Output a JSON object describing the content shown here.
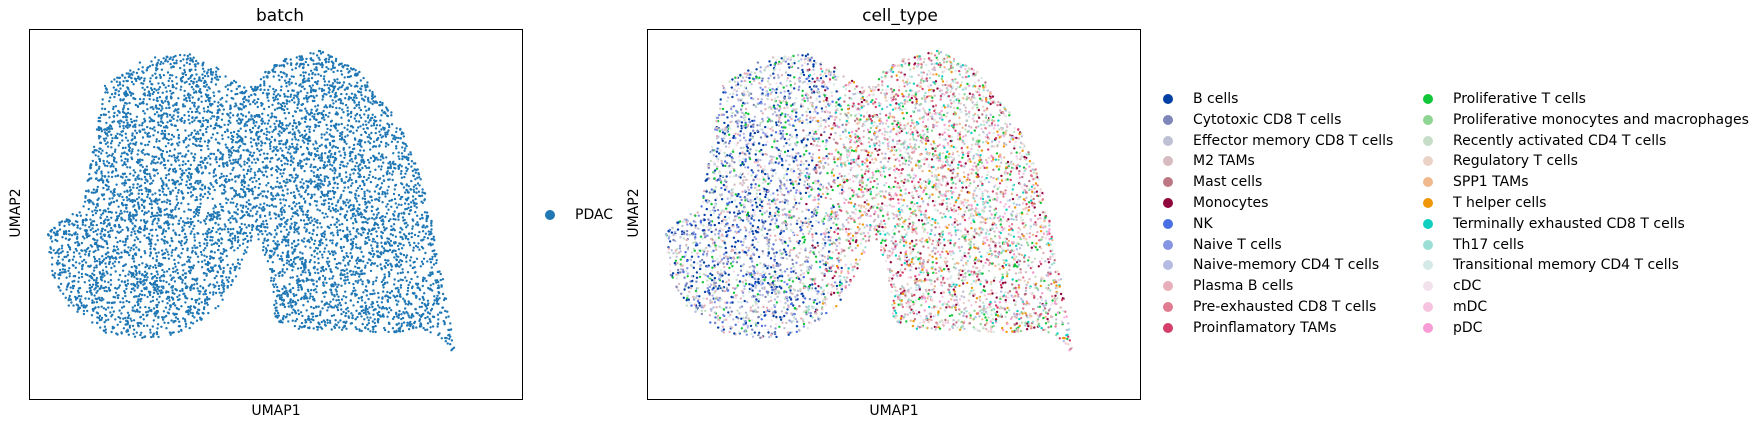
{
  "panels": [
    {
      "title": "batch",
      "xlabel": "UMAP1",
      "ylabel": "UMAP2"
    },
    {
      "title": "cell_type",
      "xlabel": "UMAP1",
      "ylabel": "UMAP2"
    }
  ],
  "chart_data": [
    {
      "type": "scatter",
      "title": "batch",
      "xlabel": "UMAP1",
      "ylabel": "UMAP2",
      "ticks": "none",
      "legend_position": "right",
      "series": [
        {
          "name": "PDAC",
          "color": "#1f77b4"
        }
      ]
    },
    {
      "type": "scatter",
      "title": "cell_type",
      "xlabel": "UMAP1",
      "ylabel": "UMAP2",
      "ticks": "none",
      "legend_position": "right",
      "legend_columns": 2,
      "series": [
        {
          "name": "B cells",
          "color": "#023fa5"
        },
        {
          "name": "Cytotoxic CD8 T cells",
          "color": "#7d87b9"
        },
        {
          "name": "Effector memory CD8 T cells",
          "color": "#bec1d4"
        },
        {
          "name": "M2 TAMs",
          "color": "#d6bcc0"
        },
        {
          "name": "Mast cells",
          "color": "#bb7784"
        },
        {
          "name": "Monocytes",
          "color": "#8e063b"
        },
        {
          "name": "NK",
          "color": "#4a6fe3"
        },
        {
          "name": "Naive T cells",
          "color": "#8595e1"
        },
        {
          "name": "Naive-memory CD4 T cells",
          "color": "#b5bbe3"
        },
        {
          "name": "Plasma B cells",
          "color": "#e6afb9"
        },
        {
          "name": "Pre-exhausted CD8 T cells",
          "color": "#e07b91"
        },
        {
          "name": "Proinflamatory TAMs",
          "color": "#d33f6a"
        },
        {
          "name": "Proliferative T cells",
          "color": "#11c638"
        },
        {
          "name": "Proliferative monocytes and macrophages",
          "color": "#8dd593"
        },
        {
          "name": "Recently activated CD4 T cells",
          "color": "#c6dec7"
        },
        {
          "name": "Regulatory T cells",
          "color": "#ead3c6"
        },
        {
          "name": "SPP1 TAMs",
          "color": "#f0b98d"
        },
        {
          "name": "T helper cells",
          "color": "#ef9708"
        },
        {
          "name": "Terminally exhausted CD8 T cells",
          "color": "#0fcfc0"
        },
        {
          "name": "Th17 cells",
          "color": "#9cded6"
        },
        {
          "name": "Transitional memory CD4 T cells",
          "color": "#d5eae7"
        },
        {
          "name": "cDC",
          "color": "#f3e1eb"
        },
        {
          "name": "mDC",
          "color": "#f6c4e1"
        },
        {
          "name": "pDC",
          "color": "#f79cd4"
        }
      ]
    }
  ]
}
